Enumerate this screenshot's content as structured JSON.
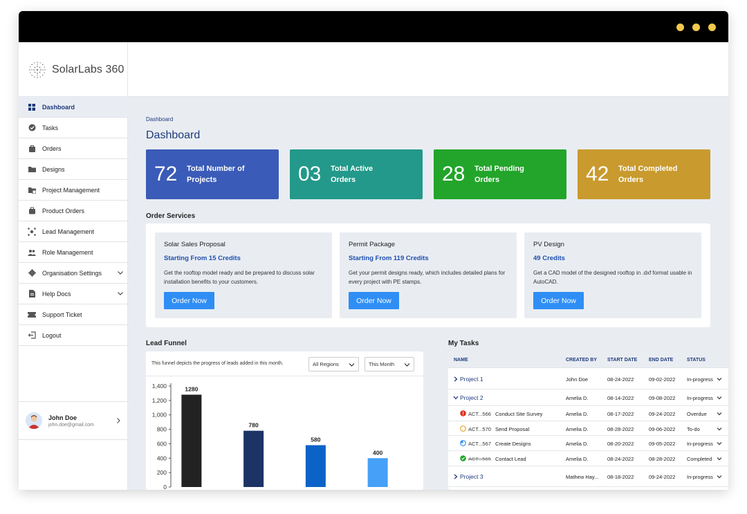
{
  "app": {
    "name": "SolarLabs 360"
  },
  "sidebar": {
    "items": [
      {
        "label": "Dashboard",
        "icon": "dashboard-icon"
      },
      {
        "label": "Tasks",
        "icon": "check-circle-icon"
      },
      {
        "label": "Orders",
        "icon": "bag-icon"
      },
      {
        "label": "Designs",
        "icon": "folder-icon"
      },
      {
        "label": "Project Management",
        "icon": "project-icon"
      },
      {
        "label": "Product Orders",
        "icon": "briefcase-icon"
      },
      {
        "label": "Lead Management",
        "icon": "network-icon"
      },
      {
        "label": "Role Management",
        "icon": "users-icon"
      },
      {
        "label": "Organisation Settings",
        "icon": "gear-icon"
      },
      {
        "label": "Help Docs",
        "icon": "document-icon"
      },
      {
        "label": "Support Ticket",
        "icon": "ticket-icon"
      },
      {
        "label": "Logout",
        "icon": "logout-icon"
      }
    ],
    "user": {
      "name": "John Doe",
      "email": "john.doe@gmail.com"
    }
  },
  "main": {
    "breadcrumb": "Dashboard",
    "title": "Dashboard",
    "stats": [
      {
        "value": "72",
        "label": "Total Number of Projects",
        "color": "#3a5bb7"
      },
      {
        "value": "03",
        "label": "Total Active Orders",
        "color": "#22998a"
      },
      {
        "value": "28",
        "label": "Total Pending Orders",
        "color": "#22a52a"
      },
      {
        "value": "42",
        "label": "Total Completed Orders",
        "color": "#c99a2e"
      }
    ],
    "order_services": {
      "title": "Order Services",
      "items": [
        {
          "name": "Solar Sales Proposal",
          "credits": "Starting From 15 Credits",
          "desc": "Get the rooftop model ready and be prepared to discuss solar installation benefits to your customers.",
          "button": "Order Now"
        },
        {
          "name": "Permit Package",
          "credits": "Starting From 119 Credits",
          "desc": "Get your permit designs ready, which includes detailed plans for every project with PE stamps.",
          "button": "Order Now"
        },
        {
          "name": "PV Design",
          "credits": "49 Credits",
          "desc": "Get a CAD model of the designed rooftop in .dxf format usable in AutoCAD.",
          "button": "Order Now"
        }
      ]
    },
    "lead_funnel": {
      "title": "Lead Funnel",
      "description": "This funnel depicts the progress of leads added in this month.",
      "region_select": "All Regions",
      "period_select": "This Month"
    },
    "my_tasks": {
      "title": "My Tasks",
      "columns": [
        "NAME",
        "CREATED BY",
        "START DATE",
        "END DATE",
        "STATUS"
      ],
      "rows": [
        {
          "kind": "project",
          "name": "Project 1",
          "created_by": "John Doe",
          "start": "08-24-2022",
          "end": "09-02-2022",
          "status": "In-progress",
          "expanded": false
        },
        {
          "kind": "project",
          "name": "Project 2",
          "created_by": "Amelia D.",
          "start": "08-14-2022",
          "end": "09-08-2022",
          "status": "In-progress",
          "expanded": true
        },
        {
          "kind": "task",
          "code": "ACT...566",
          "name": "Conduct Site Survey",
          "created_by": "Amelia D.",
          "start": "08-17-2022",
          "end": "09-24-2022",
          "status": "Overdue",
          "state_icon": "overdue-icon",
          "state_color": "#e0321c"
        },
        {
          "kind": "task",
          "code": "ACT...570",
          "name": "Send Proposal",
          "created_by": "Amelia D.",
          "start": "08-28-2022",
          "end": "09-06-2022",
          "status": "To-do",
          "state_icon": "todo-icon",
          "state_color": "#e8a21a"
        },
        {
          "kind": "task",
          "code": "ACT...567",
          "name": "Create Designs",
          "created_by": "Amelia D.",
          "start": "08-20-2022",
          "end": "09-05-2022",
          "status": "In-progress",
          "state_icon": "in-progress-icon",
          "state_color": "#2f8ef5"
        },
        {
          "kind": "task",
          "code": "ACT...565",
          "name": "Contact Lead",
          "created_by": "Amelia D.",
          "start": "08-24-2022",
          "end": "08-28-2022",
          "status": "Completed",
          "state_icon": "completed-icon",
          "state_color": "#22a52a",
          "done": true
        },
        {
          "kind": "project",
          "name": "Project 3",
          "created_by": "Mathew Hay...",
          "start": "08-18-2022",
          "end": "09-24-2022",
          "status": "In-progress",
          "expanded": false
        }
      ]
    }
  },
  "chart_data": {
    "type": "bar",
    "categories": [
      "",
      "",
      "",
      ""
    ],
    "values": [
      1280,
      780,
      580,
      400
    ],
    "value_labels": [
      "1280",
      "780",
      "580",
      "400"
    ],
    "colors": [
      "#222222",
      "#1c3366",
      "#0b63c7",
      "#46a0f7"
    ],
    "yticks": [
      "1,400",
      "1,200",
      "1,000",
      "800",
      "600",
      "400",
      "200",
      "0"
    ],
    "ylim": [
      0,
      1400
    ],
    "grid": false
  }
}
